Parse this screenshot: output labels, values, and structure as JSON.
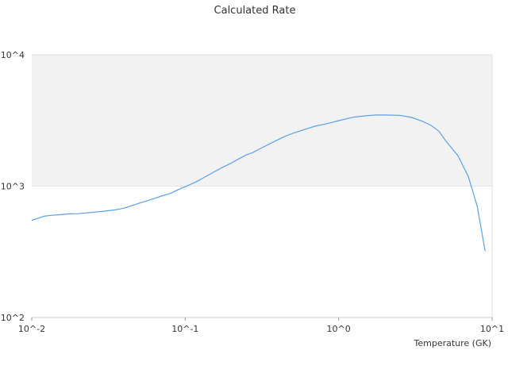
{
  "chart_data": {
    "type": "line",
    "title": "Calculated Rate",
    "xlabel": "Temperature (GK)",
    "ylabel": "",
    "x_scale": "log",
    "y_scale": "log",
    "xlim": [
      0.01,
      10
    ],
    "ylim": [
      100,
      10000
    ],
    "x_ticks": [
      {
        "value": 0.01,
        "label": "10^-2"
      },
      {
        "value": 0.1,
        "label": "10^-1"
      },
      {
        "value": 1,
        "label": "10^0"
      },
      {
        "value": 10,
        "label": "10^1"
      }
    ],
    "y_ticks": [
      {
        "value": 100,
        "label": "10^2"
      },
      {
        "value": 1000,
        "label": "10^3"
      },
      {
        "value": 10000,
        "label": "10^4"
      }
    ],
    "grid": false,
    "legend": "none",
    "band": {
      "y_from": 1000,
      "y_to": 10000,
      "color": "#f2f2f2"
    },
    "series": [
      {
        "color": "#5aa0e6",
        "x": [
          0.01,
          0.011,
          0.012,
          0.0135,
          0.015,
          0.0175,
          0.02,
          0.0225,
          0.025,
          0.03,
          0.035,
          0.04,
          0.045,
          0.05,
          0.06,
          0.07,
          0.08,
          0.09,
          0.1,
          0.11,
          0.12,
          0.13,
          0.15,
          0.175,
          0.2,
          0.225,
          0.25,
          0.275,
          0.3,
          0.35,
          0.4,
          0.45,
          0.5,
          0.6,
          0.7,
          0.8,
          0.9,
          1.0,
          1.25,
          1.5,
          1.75,
          2.0,
          2.5,
          3.0,
          3.5,
          4.0,
          4.5,
          5.0,
          6.0,
          7.0,
          8.0,
          9.0
        ],
        "y": [
          550,
          570,
          590,
          600,
          605,
          615,
          617,
          625,
          632,
          645,
          660,
          680,
          710,
          740,
          790,
          840,
          880,
          940,
          990,
          1040,
          1090,
          1150,
          1260,
          1390,
          1500,
          1620,
          1730,
          1800,
          1900,
          2080,
          2250,
          2400,
          2520,
          2700,
          2860,
          2950,
          3050,
          3150,
          3350,
          3430,
          3480,
          3480,
          3460,
          3330,
          3120,
          2900,
          2620,
          2200,
          1700,
          1180,
          700,
          320
        ]
      }
    ]
  }
}
